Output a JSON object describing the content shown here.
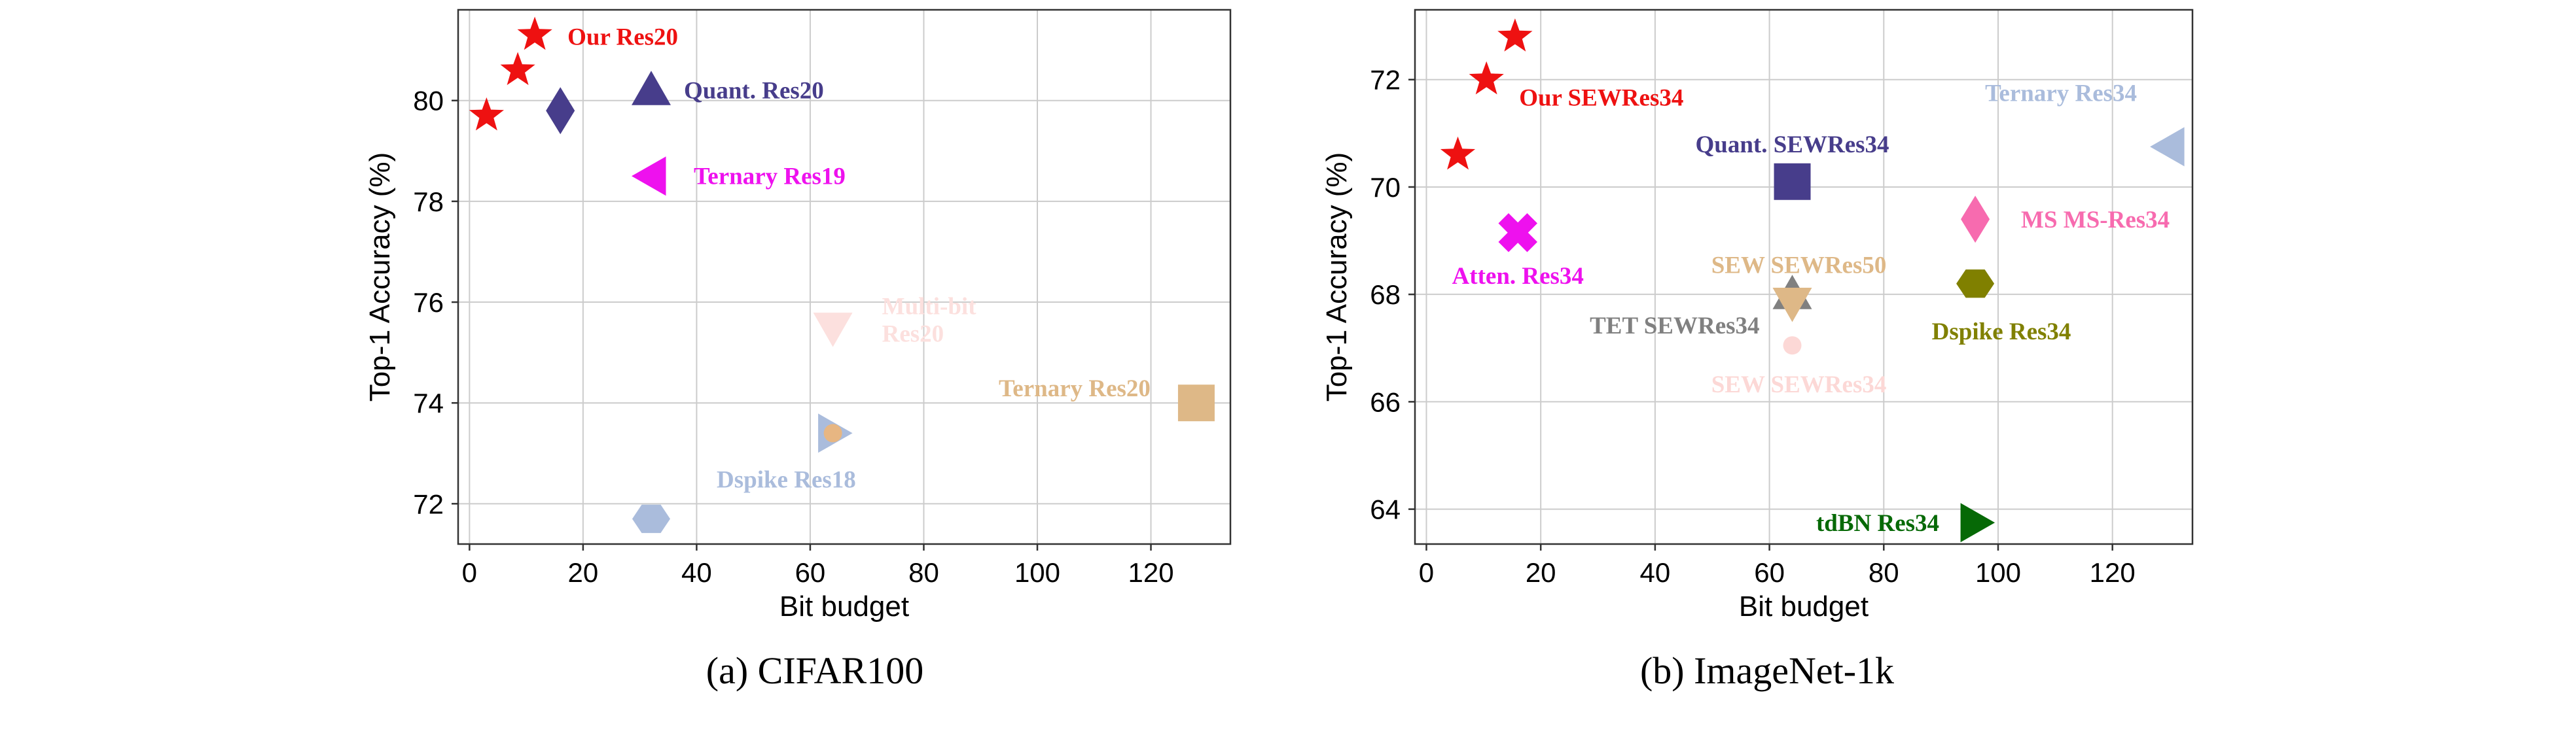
{
  "chart_data": [
    {
      "type": "scatter",
      "caption": "(a) CIFAR100",
      "xlabel": "Bit budget",
      "ylabel": "Top-1 Accuracy (%)",
      "xlim": [
        -2,
        134
      ],
      "ylim": [
        71.2,
        81.8
      ],
      "xticks": [
        0,
        20,
        40,
        60,
        80,
        100,
        120
      ],
      "yticks": [
        72,
        74,
        76,
        78,
        80
      ],
      "grid": true,
      "points": [
        {
          "label": "",
          "x": 3,
          "y": 79.7,
          "marker": "star",
          "color": "#ee1111"
        },
        {
          "label": "",
          "x": 8.5,
          "y": 80.6,
          "marker": "star",
          "color": "#ee1111"
        },
        {
          "label": "Our Res20",
          "x": 11.5,
          "y": 81.3,
          "marker": "star",
          "color": "#ee1111"
        },
        {
          "label": "",
          "x": 16,
          "y": 79.8,
          "marker": "diamond",
          "color": "#473d8b"
        },
        {
          "label": "Quant. Res20",
          "x": 32,
          "y": 80.2,
          "marker": "triangle-up",
          "color": "#473d8b"
        },
        {
          "label": "Ternary Res19",
          "x": 32,
          "y": 78.5,
          "marker": "triangle-left",
          "color": "#ee11ee"
        },
        {
          "label": "Multi-bit Res20",
          "x": 64,
          "y": 75.5,
          "marker": "triangle-down",
          "color": "#fce0de"
        },
        {
          "label": "Ternary Res20",
          "x": 128,
          "y": 74.0,
          "marker": "square",
          "color": "#deb887"
        },
        {
          "label": "",
          "x": 64,
          "y": 73.4,
          "marker": "triangle-right",
          "color": "#aabcdc"
        },
        {
          "label": "",
          "x": 64,
          "y": 73.4,
          "marker": "circle",
          "color": "#e7b682"
        },
        {
          "label": "Dspike Res18",
          "x": 32,
          "y": 71.7,
          "marker": "hexagon",
          "color": "#aabcdc"
        }
      ]
    },
    {
      "type": "scatter",
      "caption": "(b) ImageNet-1k",
      "xlabel": "Bit budget",
      "ylabel": "Top-1 Accuracy (%)",
      "xlim": [
        -2,
        134
      ],
      "ylim": [
        63.35,
        73.3
      ],
      "xticks": [
        0,
        20,
        40,
        60,
        80,
        100,
        120
      ],
      "yticks": [
        64,
        66,
        68,
        70,
        72
      ],
      "grid": true,
      "points": [
        {
          "label": "",
          "x": 15.5,
          "y": 72.8,
          "marker": "star",
          "color": "#ee1111"
        },
        {
          "label": "Our SEWRes34",
          "x": 10.5,
          "y": 72.0,
          "marker": "star",
          "color": "#ee1111"
        },
        {
          "label": "",
          "x": 5.5,
          "y": 70.6,
          "marker": "star",
          "color": "#ee1111"
        },
        {
          "label": "Quant. SEWRes34",
          "x": 64,
          "y": 70.1,
          "marker": "square",
          "color": "#473d8b"
        },
        {
          "label": "Ternary Res34",
          "x": 130,
          "y": 70.75,
          "marker": "triangle-left",
          "color": "#aabcdc"
        },
        {
          "label": "Atten. Res34",
          "x": 16,
          "y": 69.15,
          "marker": "x",
          "color": "#ee11ee"
        },
        {
          "label": "MS MS-Res34",
          "x": 96,
          "y": 69.4,
          "marker": "diamond",
          "color": "#f76baf"
        },
        {
          "label": "TET SEWRes34",
          "x": 64,
          "y": 68.0,
          "marker": "triangle-up",
          "color": "#808080"
        },
        {
          "label": "SEW SEWRes50",
          "x": 64,
          "y": 67.85,
          "marker": "triangle-down",
          "color": "#deb887"
        },
        {
          "label": "Dspike Res34",
          "x": 96,
          "y": 68.2,
          "marker": "hexagon",
          "color": "#808000"
        },
        {
          "label": "SEW SEWRes34",
          "x": 64,
          "y": 67.05,
          "marker": "circle",
          "color": "#fcd8d6"
        },
        {
          "label": "tdBN Res34",
          "x": 96,
          "y": 63.75,
          "marker": "triangle-right",
          "color": "#066906"
        }
      ]
    }
  ]
}
